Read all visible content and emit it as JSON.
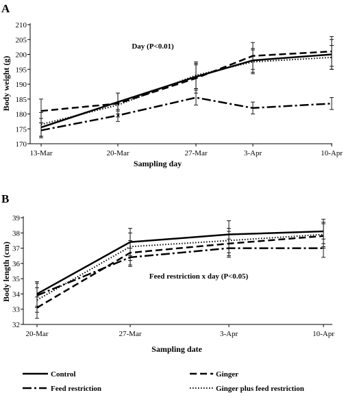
{
  "chart_data": [
    {
      "type": "line",
      "panel_label": "A",
      "annotation": "Day  (P<0.01)",
      "xlabel": "Sampling day",
      "ylabel": "Body weight (g)",
      "categories": [
        "13-Mar",
        "20-Mar",
        "27-Mar",
        "3-Apr",
        "10-Apr"
      ],
      "ylim": [
        170,
        210
      ],
      "yticks": [
        170,
        175,
        180,
        185,
        190,
        195,
        200,
        205,
        210
      ],
      "series": [
        {
          "name": "Control",
          "values": [
            175.5,
            184.0,
            192.5,
            198.0,
            200.0
          ],
          "err": [
            3.0,
            3.0,
            4.0,
            4.0,
            5.0
          ]
        },
        {
          "name": "Ginger",
          "values": [
            181.0,
            183.5,
            192.0,
            199.5,
            201.0
          ],
          "err": [
            4.0,
            3.5,
            5.0,
            4.5,
            5.0
          ]
        },
        {
          "name": "Feed restriction",
          "values": [
            174.5,
            179.5,
            185.5,
            182.0,
            183.5
          ],
          "err": [
            2.5,
            2.0,
            2.5,
            2.0,
            2.0
          ]
        },
        {
          "name": "Ginger plus feed restriction",
          "values": [
            176.5,
            183.0,
            193.0,
            197.5,
            199.0
          ],
          "err": [
            4.0,
            4.0,
            4.5,
            4.0,
            4.0
          ]
        }
      ]
    },
    {
      "type": "line",
      "panel_label": "B",
      "annotation": "Feed restriction x day  (P<0.05)",
      "xlabel": "Sampling date",
      "ylabel": "Body length (cm)",
      "categories": [
        "20-Mar",
        "27-Mar",
        "3-Apr",
        "10-Apr"
      ],
      "ylim": [
        32,
        39
      ],
      "yticks": [
        32,
        33,
        34,
        35,
        36,
        37,
        38,
        39
      ],
      "series": [
        {
          "name": "Control",
          "values": [
            34.0,
            37.4,
            37.9,
            38.1
          ],
          "err": [
            0.8,
            0.9,
            0.9,
            0.8
          ]
        },
        {
          "name": "Ginger",
          "values": [
            33.1,
            36.7,
            37.3,
            37.8
          ],
          "err": [
            0.7,
            0.8,
            0.8,
            0.8
          ]
        },
        {
          "name": "Feed restriction",
          "values": [
            33.9,
            36.4,
            37.0,
            37.0
          ],
          "err": [
            0.8,
            0.6,
            0.6,
            0.6
          ]
        },
        {
          "name": "Ginger plus feed restriction",
          "values": [
            33.6,
            37.1,
            37.5,
            37.9
          ],
          "err": [
            0.8,
            0.9,
            0.8,
            0.8
          ]
        }
      ]
    }
  ],
  "legend": {
    "items": [
      {
        "label": "Control",
        "dash": "solid"
      },
      {
        "label": "Ginger",
        "dash": "dashed"
      },
      {
        "label": "Feed restriction",
        "dash": "dashdot"
      },
      {
        "label": "Ginger plus feed restriction",
        "dash": "dotted"
      }
    ]
  }
}
